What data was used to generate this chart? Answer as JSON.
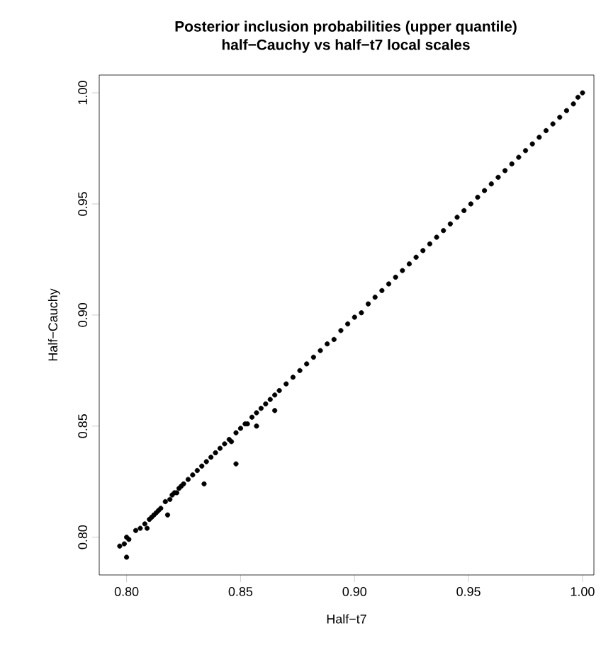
{
  "chart_data": {
    "type": "scatter",
    "title": "Posterior inclusion probabilities (upper quantile)",
    "subtitle": "half−Cauchy vs half−t7 local scales",
    "xlabel": "Half−t7",
    "ylabel": "Half−Cauchy",
    "xlim": [
      0.788,
      1.005
    ],
    "ylim": [
      0.783,
      1.008
    ],
    "xticks": [
      {
        "value": 0.8,
        "label": "0.80"
      },
      {
        "value": 0.85,
        "label": "0.85"
      },
      {
        "value": 0.9,
        "label": "0.90"
      },
      {
        "value": 0.95,
        "label": "0.95"
      },
      {
        "value": 1.0,
        "label": "1.00"
      }
    ],
    "yticks": [
      {
        "value": 0.8,
        "label": "0.80"
      },
      {
        "value": 0.85,
        "label": "0.85"
      },
      {
        "value": 0.9,
        "label": "0.90"
      },
      {
        "value": 0.95,
        "label": "0.95"
      },
      {
        "value": 1.0,
        "label": "1.00"
      }
    ],
    "grid": false,
    "color": "#000000",
    "x": [
      0.797,
      0.799,
      0.8,
      0.8,
      0.801,
      0.804,
      0.806,
      0.808,
      0.809,
      0.81,
      0.811,
      0.812,
      0.813,
      0.814,
      0.815,
      0.817,
      0.818,
      0.819,
      0.82,
      0.821,
      0.822,
      0.823,
      0.824,
      0.825,
      0.827,
      0.829,
      0.831,
      0.833,
      0.834,
      0.835,
      0.837,
      0.839,
      0.841,
      0.843,
      0.845,
      0.846,
      0.848,
      0.848,
      0.85,
      0.852,
      0.853,
      0.855,
      0.857,
      0.857,
      0.859,
      0.861,
      0.863,
      0.865,
      0.865,
      0.867,
      0.87,
      0.873,
      0.876,
      0.879,
      0.882,
      0.885,
      0.888,
      0.891,
      0.894,
      0.897,
      0.9,
      0.903,
      0.906,
      0.909,
      0.912,
      0.915,
      0.918,
      0.921,
      0.924,
      0.927,
      0.93,
      0.933,
      0.936,
      0.939,
      0.942,
      0.945,
      0.948,
      0.951,
      0.954,
      0.957,
      0.96,
      0.963,
      0.966,
      0.969,
      0.972,
      0.975,
      0.978,
      0.981,
      0.984,
      0.987,
      0.99,
      0.993,
      0.996,
      0.998,
      1.0
    ],
    "values": [
      0.796,
      0.797,
      0.791,
      0.8,
      0.799,
      0.803,
      0.804,
      0.806,
      0.804,
      0.808,
      0.809,
      0.81,
      0.811,
      0.812,
      0.813,
      0.816,
      0.81,
      0.817,
      0.819,
      0.82,
      0.82,
      0.822,
      0.823,
      0.824,
      0.826,
      0.828,
      0.83,
      0.832,
      0.824,
      0.834,
      0.836,
      0.838,
      0.84,
      0.842,
      0.844,
      0.843,
      0.847,
      0.833,
      0.849,
      0.851,
      0.851,
      0.854,
      0.856,
      0.85,
      0.858,
      0.86,
      0.862,
      0.864,
      0.857,
      0.866,
      0.869,
      0.872,
      0.875,
      0.878,
      0.881,
      0.884,
      0.887,
      0.889,
      0.893,
      0.896,
      0.899,
      0.901,
      0.905,
      0.908,
      0.911,
      0.914,
      0.917,
      0.92,
      0.923,
      0.926,
      0.929,
      0.932,
      0.935,
      0.938,
      0.941,
      0.944,
      0.947,
      0.95,
      0.953,
      0.956,
      0.959,
      0.962,
      0.965,
      0.968,
      0.971,
      0.974,
      0.977,
      0.98,
      0.983,
      0.986,
      0.989,
      0.992,
      0.995,
      0.998,
      1.0
    ]
  }
}
